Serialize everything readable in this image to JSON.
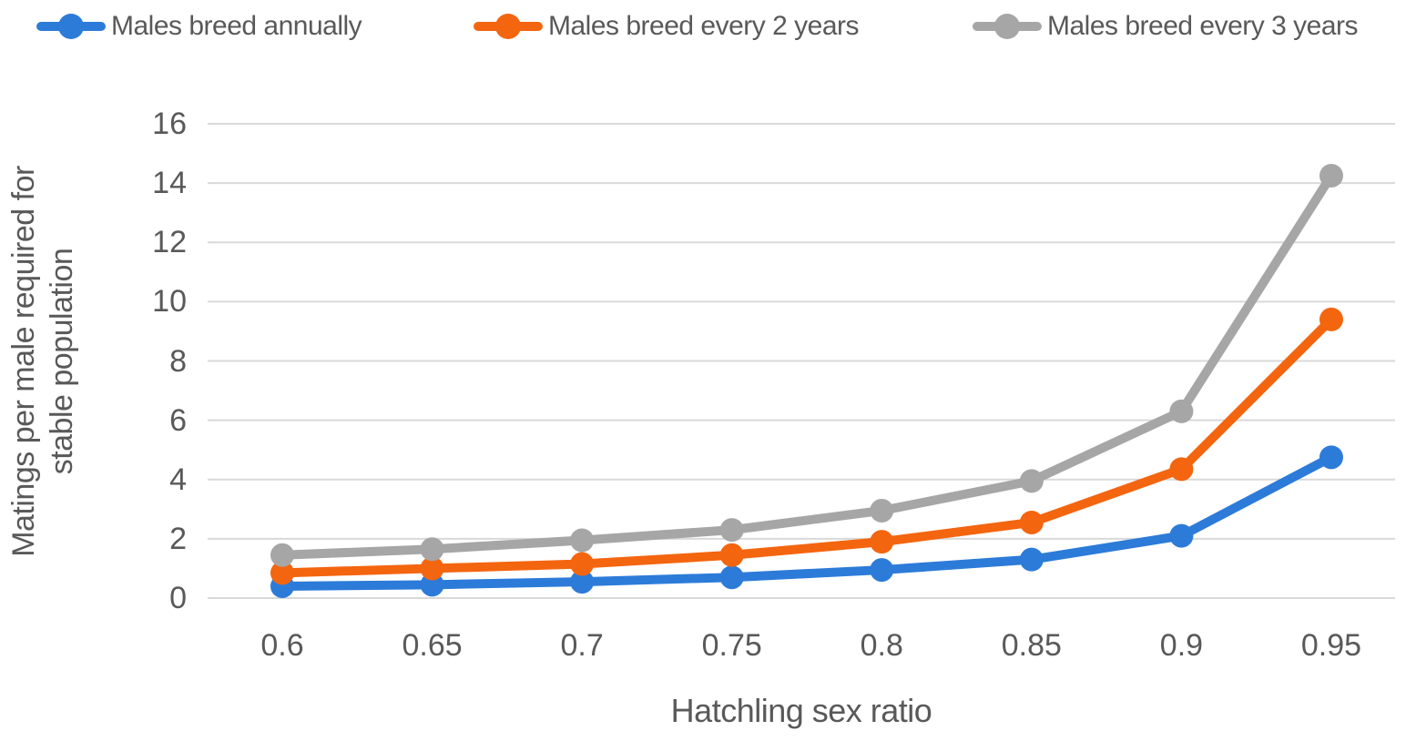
{
  "legend": {
    "items": [
      {
        "label": "Males breed annually",
        "color": "#2C7BD9"
      },
      {
        "label": "Males breed every 2 years",
        "color": "#F4650F"
      },
      {
        "label": "Males breed every 3 years",
        "color": "#A6A6A6"
      }
    ]
  },
  "axes": {
    "y_title_line1": "Matings per male required for",
    "y_title_line2": "stable population",
    "x_title": "Hatchling sex ratio"
  },
  "chart_data": {
    "type": "line",
    "title": "",
    "xlabel": "Hatchling sex ratio",
    "ylabel": "Matings per male required for stable population",
    "categories": [
      0.6,
      0.65,
      0.7,
      0.75,
      0.8,
      0.85,
      0.9,
      0.95
    ],
    "x_tick_labels": [
      "0.6",
      "0.65",
      "0.7",
      "0.75",
      "0.8",
      "0.85",
      "0.9",
      "0.95"
    ],
    "y_tick_labels": [
      "16",
      "14",
      "12",
      "10",
      "8",
      "6",
      "4",
      "2",
      "0"
    ],
    "ylim": [
      0,
      16
    ],
    "y_tick_step": 2,
    "grid": true,
    "legend_position": "top",
    "marker": "circle",
    "gridline_color": "#D9D9D9",
    "series": [
      {
        "name": "Males breed annually",
        "color": "#2C7BD9",
        "values": [
          0.4,
          0.45,
          0.55,
          0.7,
          0.95,
          1.3,
          2.1,
          4.75
        ]
      },
      {
        "name": "Males breed every 2 years",
        "color": "#F4650F",
        "values": [
          0.85,
          1.0,
          1.15,
          1.45,
          1.9,
          2.55,
          4.35,
          9.4
        ]
      },
      {
        "name": "Males breed every 3 years",
        "color": "#A6A6A6",
        "values": [
          1.45,
          1.65,
          1.95,
          2.3,
          2.95,
          3.95,
          6.3,
          14.25
        ]
      }
    ]
  }
}
